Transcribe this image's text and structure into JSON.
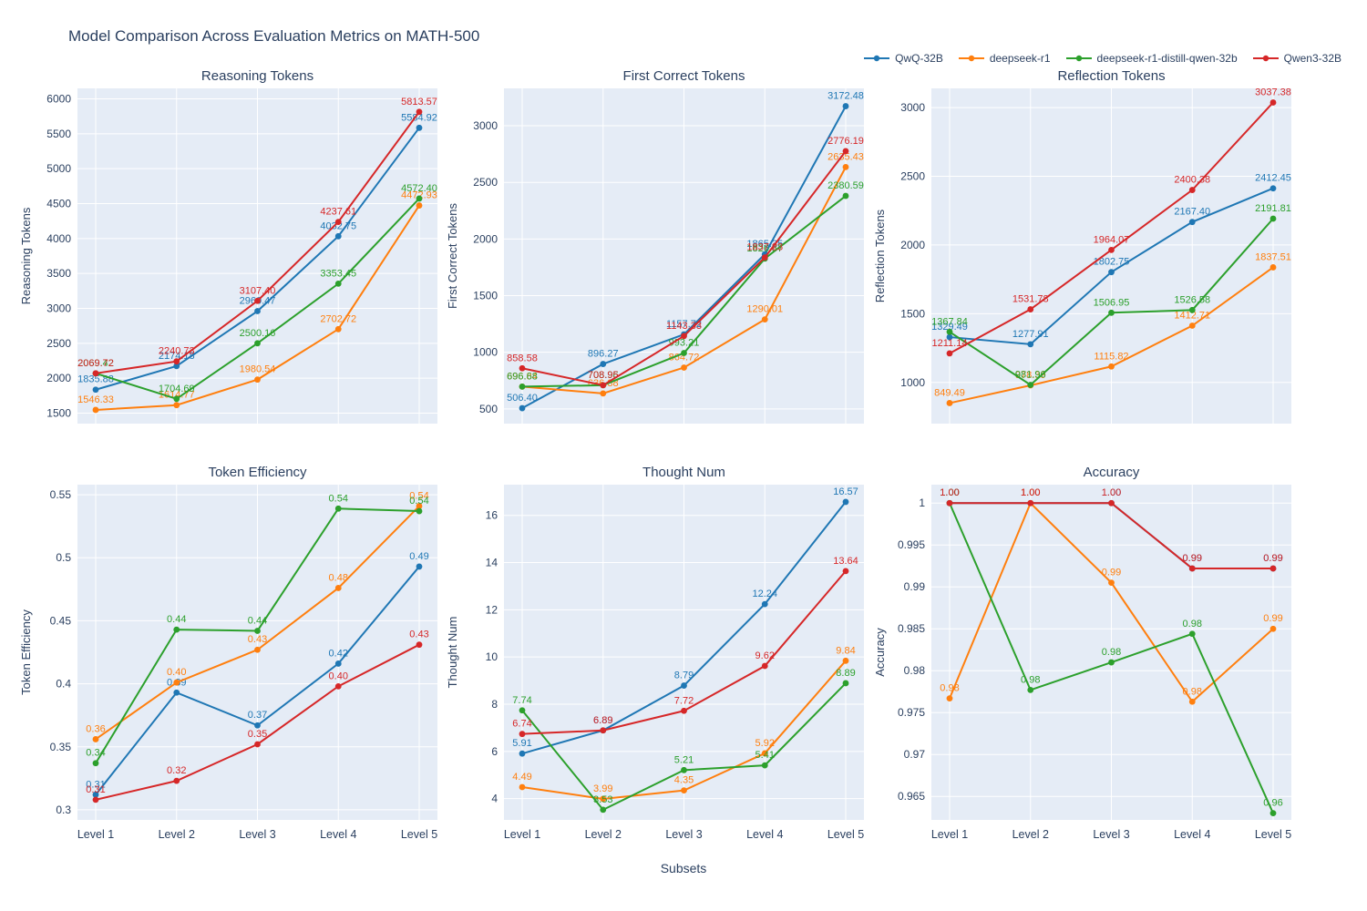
{
  "title": "Model Comparison Across Evaluation Metrics on MATH-500",
  "xlabel": "Subsets",
  "categories": [
    "Level 1",
    "Level 2",
    "Level 3",
    "Level 4",
    "Level 5"
  ],
  "legend": [
    {
      "label": "QwQ-32B",
      "color": "#1f77b4"
    },
    {
      "label": "deepseek-r1",
      "color": "#ff7f0e"
    },
    {
      "label": "deepseek-r1-distill-qwen-32b",
      "color": "#2ca02c"
    },
    {
      "label": "Qwen3-32B",
      "color": "#d62728"
    }
  ],
  "colors": {
    "plot_background": "#e5ecf6",
    "grid": "#ffffff",
    "text": "#2a3f5f"
  },
  "chart_data": [
    {
      "type": "line",
      "title": "Reasoning Tokens",
      "ylabel": "Reasoning Tokens",
      "yticks": [
        1500,
        2000,
        2500,
        3000,
        3500,
        4000,
        4500,
        5000,
        5500,
        6000
      ],
      "ytick_labels": [
        "1500",
        "2000",
        "2500",
        "3000",
        "3500",
        "4000",
        "4500",
        "5000",
        "5500",
        "6000"
      ],
      "yrange": [
        1350,
        6150
      ],
      "series": [
        {
          "name": "QwQ-32B",
          "values": [
            1835.88,
            2174.18,
            2960.47,
            4032.75,
            5584.92
          ],
          "labels": [
            "1835.88",
            "2174.18",
            "2960.47",
            "4032.75",
            "5584.92"
          ]
        },
        {
          "name": "deepseek-r1",
          "values": [
            1546.33,
            1614.77,
            1980.54,
            2702.72,
            4472.93
          ],
          "labels": [
            "1546.33",
            "1614.77",
            "1980.54",
            "2702.72",
            "4472.93"
          ]
        },
        {
          "name": "deepseek-r1-distill-qwen-32b",
          "values": [
            2069.42,
            1704.69,
            2500.16,
            3353.45,
            4572.4
          ],
          "labels": [
            "2069.42",
            "1704.69",
            "2500.16",
            "3353.45",
            "4572.40"
          ]
        },
        {
          "name": "Qwen3-32B",
          "values": [
            2069.72,
            2240.73,
            3107.4,
            4237.61,
            5813.57
          ],
          "labels": [
            "2069.72",
            "2240.73",
            "3107.40",
            "4237.61",
            "5813.57"
          ]
        }
      ]
    },
    {
      "type": "line",
      "title": "First Correct Tokens",
      "ylabel": "First Correct Tokens",
      "yticks": [
        500,
        1000,
        1500,
        2000,
        2500,
        3000
      ],
      "ytick_labels": [
        "500",
        "1000",
        "1500",
        "2000",
        "2500",
        "3000"
      ],
      "yrange": [
        370,
        3330
      ],
      "series": [
        {
          "name": "QwQ-32B",
          "values": [
            506.4,
            896.27,
            1157.72,
            1865.35,
            3172.48
          ],
          "labels": [
            "506.40",
            "896.27",
            "1157.72",
            "1865.35",
            "3172.48"
          ]
        },
        {
          "name": "deepseek-r1",
          "values": [
            696.84,
            636.38,
            864.72,
            1290.01,
            2635.43
          ],
          "labels": [
            "696.84",
            "636.38",
            "864.72",
            "1290.01",
            "2635.43"
          ]
        },
        {
          "name": "deepseek-r1-distill-qwen-32b",
          "values": [
            696.68,
            708.96,
            993.21,
            1826.87,
            2380.59
          ],
          "labels": [
            "696.68",
            "708.96",
            "993.21",
            "1826.87",
            "2380.59"
          ]
        },
        {
          "name": "Qwen3-32B",
          "values": [
            858.58,
            708.95,
            1143.33,
            1837.23,
            2776.19
          ],
          "labels": [
            "858.58",
            "708.95",
            "1143.33",
            "1837.23",
            "2776.19"
          ]
        }
      ]
    },
    {
      "type": "line",
      "title": "Reflection Tokens",
      "ylabel": "Reflection Tokens",
      "yticks": [
        1000,
        1500,
        2000,
        2500,
        3000
      ],
      "ytick_labels": [
        "1000",
        "1500",
        "2000",
        "2500",
        "3000"
      ],
      "yrange": [
        700,
        3140
      ],
      "series": [
        {
          "name": "QwQ-32B",
          "values": [
            1329.49,
            1277.91,
            1802.75,
            2167.4,
            2412.45
          ],
          "labels": [
            "1329.49",
            "1277.91",
            "1802.75",
            "2167.40",
            "2412.45"
          ]
        },
        {
          "name": "deepseek-r1",
          "values": [
            849.49,
            978.39,
            1115.82,
            1412.71,
            1837.51
          ],
          "labels": [
            "849.49",
            "978.39",
            "1115.82",
            "1412.71",
            "1837.51"
          ]
        },
        {
          "name": "deepseek-r1-distill-qwen-32b",
          "values": [
            1367.84,
            981.96,
            1506.95,
            1526.58,
            2191.81
          ],
          "labels": [
            "1367.84",
            "981.96",
            "1506.95",
            "1526.58",
            "2191.81"
          ]
        },
        {
          "name": "Qwen3-32B",
          "values": [
            1211.14,
            1531.78,
            1964.07,
            2400.38,
            3037.38
          ],
          "labels": [
            "1211.14",
            "1531.78",
            "1964.07",
            "2400.38",
            "3037.38"
          ]
        }
      ]
    },
    {
      "type": "line",
      "title": "Token Efficiency",
      "ylabel": "Token Efficiency",
      "yticks": [
        0.3,
        0.35,
        0.4,
        0.45,
        0.5,
        0.55
      ],
      "ytick_labels": [
        "0.3",
        "0.35",
        "0.4",
        "0.45",
        "0.5",
        "0.55"
      ],
      "yrange": [
        0.292,
        0.558
      ],
      "series": [
        {
          "name": "QwQ-32B",
          "values": [
            0.312,
            0.393,
            0.367,
            0.416,
            0.493
          ],
          "labels": [
            "0.31",
            "0.39",
            "0.37",
            "0.42",
            "0.49"
          ]
        },
        {
          "name": "deepseek-r1",
          "values": [
            0.356,
            0.401,
            0.427,
            0.476,
            0.541
          ],
          "labels": [
            "0.36",
            "0.40",
            "0.43",
            "0.48",
            "0.54"
          ]
        },
        {
          "name": "deepseek-r1-distill-qwen-32b",
          "values": [
            0.337,
            0.443,
            0.442,
            0.539,
            0.537
          ],
          "labels": [
            "0.34",
            "0.44",
            "0.44",
            "0.54",
            "0.54"
          ]
        },
        {
          "name": "Qwen3-32B",
          "values": [
            0.308,
            0.323,
            0.352,
            0.398,
            0.431
          ],
          "labels": [
            "0.31",
            "0.32",
            "0.35",
            "0.40",
            "0.43"
          ]
        }
      ]
    },
    {
      "type": "line",
      "title": "Thought Num",
      "ylabel": "Thought Num",
      "yticks": [
        4,
        6,
        8,
        10,
        12,
        14,
        16
      ],
      "ytick_labels": [
        "4",
        "6",
        "8",
        "10",
        "12",
        "14",
        "16"
      ],
      "yrange": [
        3.1,
        17.3
      ],
      "series": [
        {
          "name": "QwQ-32B",
          "values": [
            5.91,
            6.89,
            8.79,
            12.24,
            16.57
          ],
          "labels": [
            "5.91",
            "6.89",
            "8.79",
            "12.24",
            "16.57"
          ]
        },
        {
          "name": "deepseek-r1",
          "values": [
            4.49,
            3.99,
            4.35,
            5.92,
            9.84
          ],
          "labels": [
            "4.49",
            "3.99",
            "4.35",
            "5.92",
            "9.84"
          ]
        },
        {
          "name": "deepseek-r1-distill-qwen-32b",
          "values": [
            7.74,
            3.53,
            5.21,
            5.41,
            8.89
          ],
          "labels": [
            "7.74",
            "3.53",
            "5.21",
            "5.41",
            "8.89"
          ]
        },
        {
          "name": "Qwen3-32B",
          "values": [
            6.74,
            6.89,
            7.72,
            9.62,
            13.64
          ],
          "labels": [
            "6.74",
            "6.89",
            "7.72",
            "9.62",
            "13.64"
          ]
        }
      ]
    },
    {
      "type": "line",
      "title": "Accuracy",
      "ylabel": "Accuracy",
      "yticks": [
        0.965,
        0.97,
        0.975,
        0.98,
        0.985,
        0.99,
        0.995,
        1
      ],
      "ytick_labels": [
        "0.965",
        "0.97",
        "0.975",
        "0.98",
        "0.985",
        "0.99",
        "0.995",
        "1"
      ],
      "yrange": [
        0.9622,
        1.0022
      ],
      "series": [
        {
          "name": "QwQ-32B",
          "values": [
            1.0,
            1.0,
            1.0,
            0.9922,
            0.9922
          ],
          "labels": [
            "1.00",
            "1.00",
            "1.00",
            "0.99",
            "0.99"
          ]
        },
        {
          "name": "deepseek-r1",
          "values": [
            0.9767,
            1.0,
            0.9905,
            0.9763,
            0.985
          ],
          "labels": [
            "0.98",
            "1.00",
            "0.99",
            "0.98",
            "0.99"
          ]
        },
        {
          "name": "deepseek-r1-distill-qwen-32b",
          "values": [
            1.0,
            0.9777,
            0.981,
            0.9844,
            0.963
          ],
          "labels": [
            "1.00",
            "0.98",
            "0.98",
            "0.98",
            "0.96"
          ]
        },
        {
          "name": "Qwen3-32B",
          "values": [
            1.0,
            1.0,
            1.0,
            0.9922,
            0.9922
          ],
          "labels": [
            "1.00",
            "1.00",
            "1.00",
            "0.99",
            "0.99"
          ]
        }
      ]
    }
  ]
}
